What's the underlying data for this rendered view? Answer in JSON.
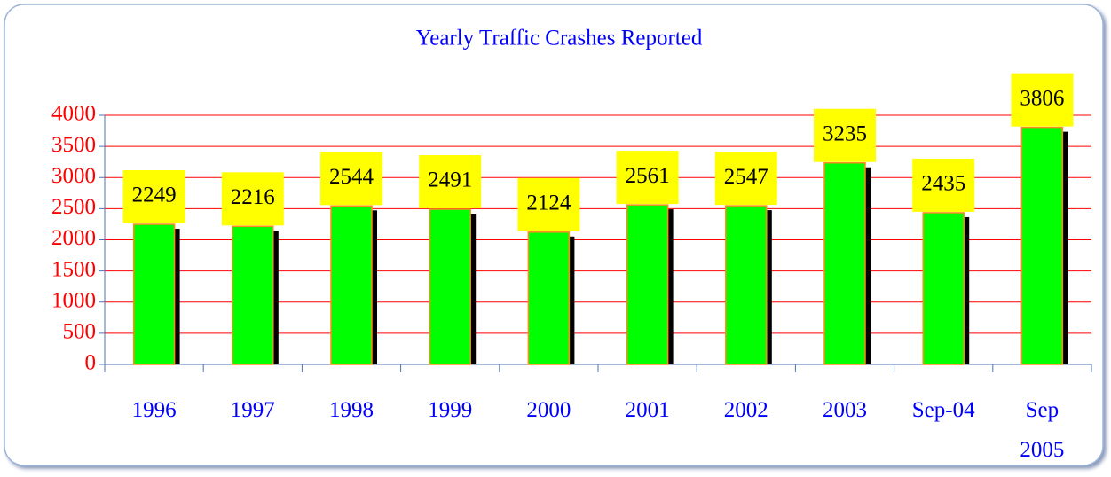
{
  "chart_data": {
    "type": "bar",
    "title": "Yearly Traffic Crashes Reported",
    "categories": [
      "1996",
      "1997",
      "1998",
      "1999",
      "2000",
      "2001",
      "2002",
      "2003",
      "Sep-04",
      "Sep 2005"
    ],
    "values": [
      2249,
      2216,
      2544,
      2491,
      2124,
      2561,
      2547,
      3235,
      2435,
      3806
    ],
    "color": "#00ff00",
    "ylim": [
      0,
      4000
    ],
    "yticks": [
      0,
      500,
      1000,
      1500,
      2000,
      2500,
      3000,
      3500,
      4000
    ],
    "grid": true
  }
}
